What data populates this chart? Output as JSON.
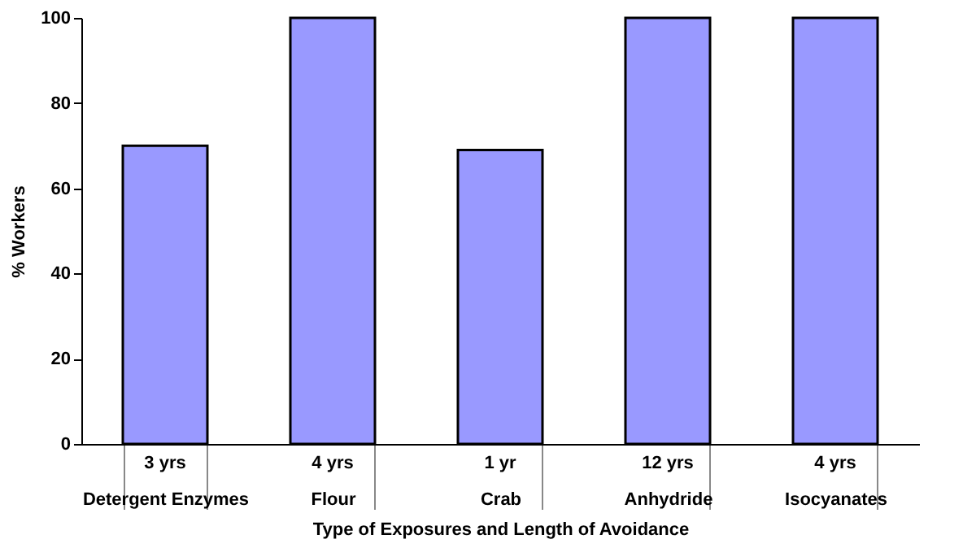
{
  "chart_data": {
    "type": "bar",
    "xlabel": "Type of Exposures and Length of Avoidance",
    "ylabel": "% Workers",
    "categories": [
      "Detergent Enzymes",
      "Flour",
      "Crab",
      "Anhydride",
      "Isocyanates"
    ],
    "values": [
      70,
      100,
      69,
      100,
      100
    ],
    "color": "#9999ff",
    "ylim": [
      0,
      100
    ],
    "yticks": [
      0,
      20,
      40,
      60,
      80,
      100
    ],
    "grid": false,
    "annotations": [
      "3 yrs",
      "4 yrs",
      "1 yr",
      "12 yrs",
      "4 yrs"
    ]
  }
}
